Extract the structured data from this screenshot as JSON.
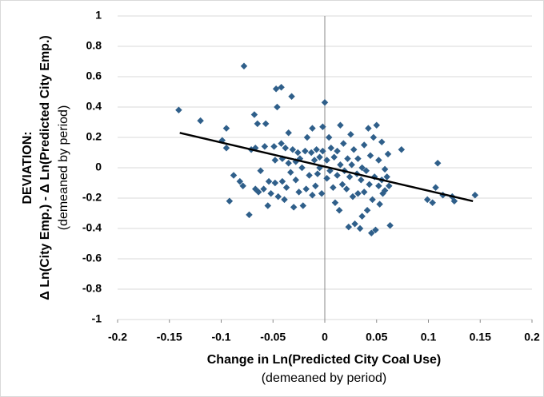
{
  "chart_data": {
    "type": "scatter",
    "x_label": "Change in Ln(Predicted City Coal Use)",
    "x_label_note": "(demeaned by period)",
    "y_label": [
      "DEVIATION:",
      "Δ Ln(City Emp.) - Δ Ln(Predicted City Emp.)"
    ],
    "y_label_note": "(demeaned by period)",
    "xlim": [
      -0.2,
      0.2
    ],
    "xticks": [
      -0.2,
      -0.15,
      -0.1,
      -0.05,
      0,
      0.05,
      0.1,
      0.15,
      0.2
    ],
    "ylim": [
      -1,
      1
    ],
    "yticks": [
      -1,
      -0.8,
      -0.6,
      -0.4,
      -0.2,
      0,
      0.2,
      0.4,
      0.6,
      0.8,
      1
    ],
    "grid": true,
    "color": "#2f5f8a",
    "x": [
      -0.141,
      -0.12,
      -0.099,
      -0.095,
      -0.095,
      -0.092,
      -0.088,
      -0.082,
      -0.079,
      -0.078,
      -0.073,
      -0.071,
      -0.068,
      -0.067,
      -0.067,
      -0.065,
      -0.064,
      -0.062,
      -0.059,
      -0.058,
      -0.057,
      -0.055,
      -0.054,
      -0.052,
      -0.049,
      -0.048,
      -0.048,
      -0.047,
      -0.046,
      -0.045,
      -0.042,
      -0.042,
      -0.041,
      -0.041,
      -0.039,
      -0.038,
      -0.037,
      -0.035,
      -0.035,
      -0.033,
      -0.032,
      -0.031,
      -0.03,
      -0.028,
      -0.028,
      -0.026,
      -0.025,
      -0.024,
      -0.022,
      -0.021,
      -0.019,
      -0.018,
      -0.017,
      -0.015,
      -0.013,
      -0.012,
      -0.012,
      -0.01,
      -0.009,
      -0.008,
      -0.007,
      -0.005,
      -0.005,
      -0.003,
      -0.002,
      -0.002,
      0,
      0.002,
      0.002,
      0.004,
      0.005,
      0.006,
      0.008,
      0.009,
      0.01,
      0.012,
      0.012,
      0.014,
      0.015,
      0.015,
      0.017,
      0.018,
      0.019,
      0.021,
      0.022,
      0.023,
      0.024,
      0.025,
      0.026,
      0.027,
      0.028,
      0.029,
      0.031,
      0.032,
      0.032,
      0.034,
      0.035,
      0.036,
      0.036,
      0.038,
      0.038,
      0.04,
      0.041,
      0.042,
      0.043,
      0.044,
      0.045,
      0.046,
      0.047,
      0.048,
      0.049,
      0.05,
      0.052,
      0.052,
      0.053,
      0.055,
      0.055,
      0.056,
      0.058,
      0.058,
      0.06,
      0.061,
      0.062,
      0.063,
      0.074,
      0.099,
      0.104,
      0.107,
      0.109,
      0.114,
      0.123,
      0.125,
      0.145
    ],
    "y": [
      0.38,
      0.31,
      0.18,
      0.13,
      0.26,
      -0.22,
      -0.05,
      -0.09,
      -0.12,
      0.67,
      -0.31,
      0.12,
      0.35,
      0.13,
      -0.14,
      0.29,
      -0.16,
      -0.02,
      -0.14,
      0.14,
      0.29,
      -0.25,
      -0.09,
      -0.17,
      0.14,
      0.05,
      -0.1,
      0.52,
      0.4,
      -0.19,
      0.53,
      0.16,
      0.06,
      -0.09,
      -0.21,
      0.13,
      -0.13,
      0.23,
      0.03,
      -0.03,
      0.47,
      0.12,
      -0.26,
      0.04,
      -0.08,
      0.1,
      -0.16,
      0.06,
      0,
      -0.25,
      0.11,
      -0.14,
      0.2,
      -0.05,
      0.1,
      -0.18,
      0.26,
      0.05,
      -0.12,
      0.12,
      -0.04,
      0.07,
      0,
      -0.17,
      0.27,
      0.11,
      0.43,
      -0.07,
      0.05,
      0.2,
      -0.02,
      0.13,
      -0.13,
      0.07,
      -0.23,
      0.11,
      -0.05,
      -0.28,
      0.02,
      0.28,
      -0.11,
      0.16,
      -0.02,
      -0.14,
      0.06,
      -0.39,
      -0.06,
      0.22,
      0.02,
      -0.19,
      0.12,
      -0.37,
      -0.04,
      -0.17,
      0.06,
      -0.4,
      -0.08,
      0,
      -0.32,
      0.15,
      -0.16,
      -0.02,
      -0.28,
      0.26,
      -0.11,
      0.08,
      -0.43,
      -0.21,
      0.2,
      -0.06,
      -0.41,
      0.28,
      -0.12,
      0.05,
      -0.24,
      0.17,
      -0.08,
      -0.17,
      -0.01,
      -0.15,
      -0.06,
      0.09,
      -0.12,
      -0.38,
      0.12,
      -0.21,
      -0.23,
      -0.13,
      0.03,
      -0.18,
      -0.19,
      -0.22,
      -0.18
    ],
    "trendline": {
      "x": [
        -0.14,
        0.143
      ],
      "y": [
        0.23,
        -0.22
      ]
    }
  }
}
